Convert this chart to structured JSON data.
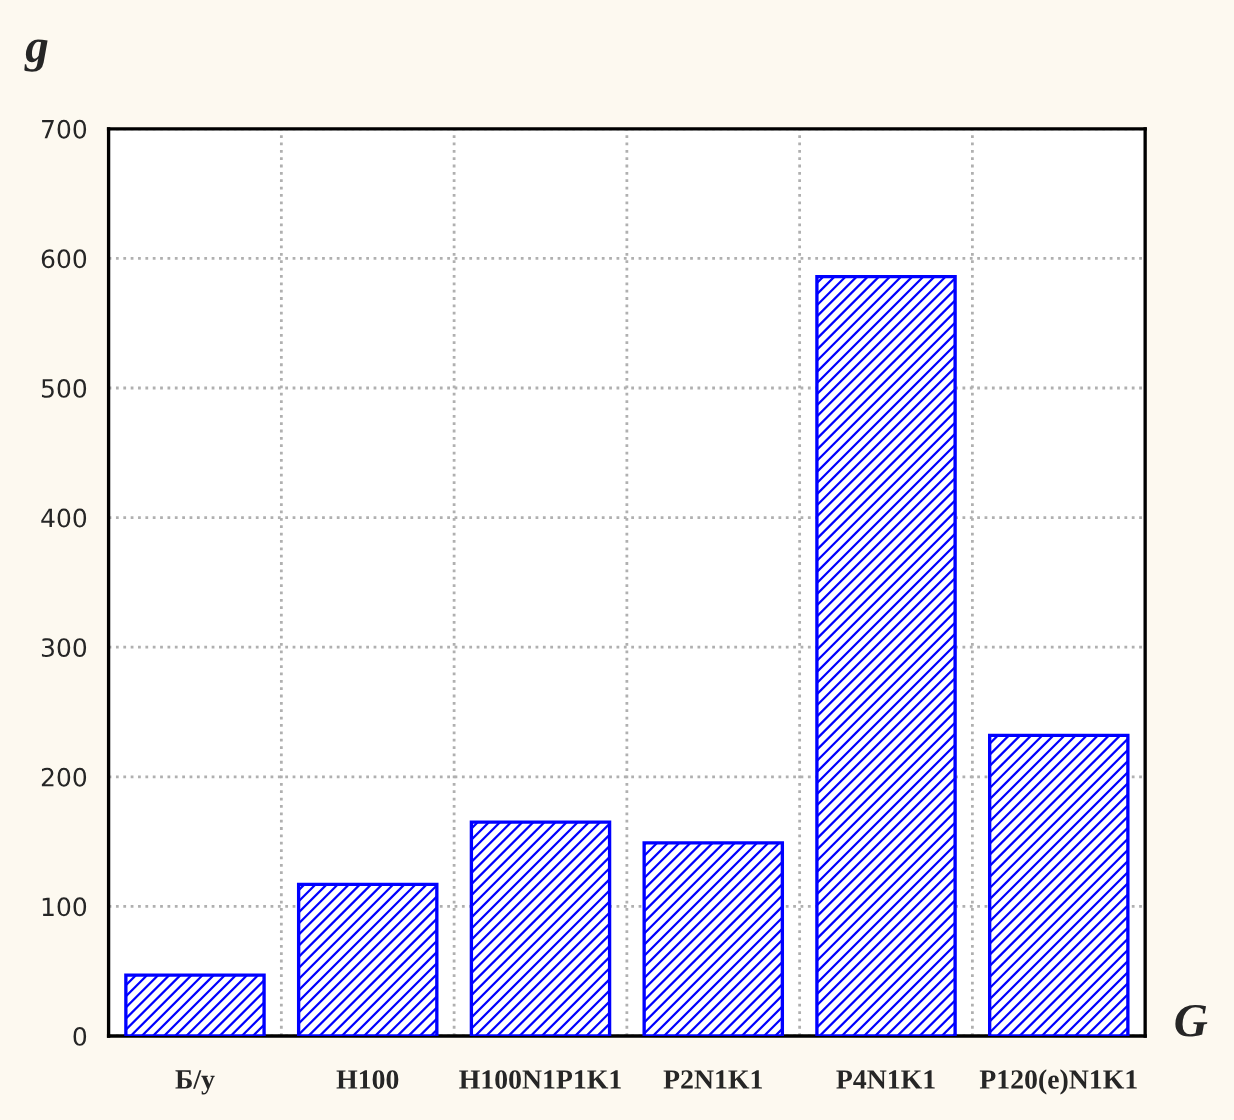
{
  "chart_data": {
    "type": "bar",
    "xlabel": "G",
    "ylabel": "g",
    "categories": [
      "Б/у",
      "H100",
      "H100N1P1K1",
      "P2N1K1",
      "P4N1K1",
      "P120(e)N1K1"
    ],
    "values": [
      47,
      117,
      165,
      149,
      586,
      232
    ],
    "color": "#0000ff",
    "ylim": [
      0,
      700
    ],
    "yticks": [
      0,
      100,
      200,
      300,
      400,
      500,
      600,
      700
    ],
    "grid": true
  }
}
